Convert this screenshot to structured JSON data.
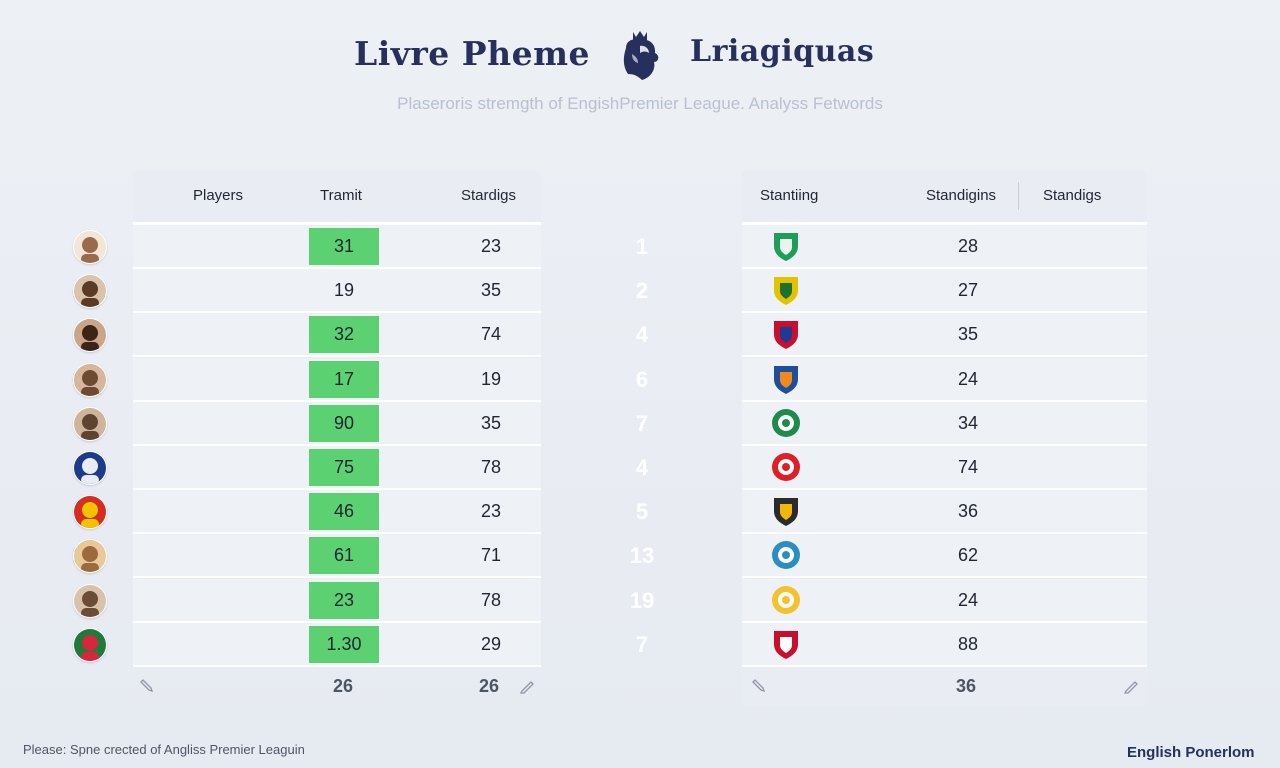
{
  "header": {
    "title_left": "Livre Pheme",
    "title_right": "Lriagiquas",
    "logo_icon": "lion-crown-icon",
    "subtitle": "Plaseroris stremgth of EngishPremier League. Analyss Fetwords"
  },
  "left_table": {
    "columns": [
      "Players",
      "Tramit",
      "Stardigs"
    ],
    "rows": [
      {
        "avatar": "player-avatar",
        "tramit": "31",
        "standings": "23",
        "highlight": true
      },
      {
        "avatar": "player-avatar",
        "tramit": "19",
        "standings": "35",
        "highlight": false
      },
      {
        "avatar": "player-avatar",
        "tramit": "32",
        "standings": "74",
        "highlight": true
      },
      {
        "avatar": "player-avatar",
        "tramit": "17",
        "standings": "19",
        "highlight": true
      },
      {
        "avatar": "player-avatar",
        "tramit": "90",
        "standings": "35",
        "highlight": true
      },
      {
        "avatar": "ball-icon",
        "tramit": "75",
        "standings": "78",
        "highlight": true
      },
      {
        "avatar": "club-badge-icon",
        "tramit": "46",
        "standings": "23",
        "highlight": true
      },
      {
        "avatar": "player-avatar",
        "tramit": "61",
        "standings": "71",
        "highlight": true
      },
      {
        "avatar": "player-avatar",
        "tramit": "23",
        "standings": "78",
        "highlight": true
      },
      {
        "avatar": "club-badge-icon",
        "tramit": "1.30",
        "standings": "29",
        "highlight": true
      }
    ],
    "footer": {
      "tramit_total": "26",
      "standings_total": "26"
    }
  },
  "ranks": [
    "1",
    "2",
    "4",
    "6",
    "7",
    "4",
    "5",
    "13",
    "19",
    "7"
  ],
  "right_table": {
    "columns": [
      "Stantiing",
      "Standigins",
      "Standigs"
    ],
    "rows": [
      {
        "crest": "shield-crest-icon",
        "value": "28"
      },
      {
        "crest": "shield-crest-icon",
        "value": "27"
      },
      {
        "crest": "shield-crest-icon",
        "value": "35"
      },
      {
        "crest": "shield-crest-icon",
        "value": "24"
      },
      {
        "crest": "round-crest-icon",
        "value": "34"
      },
      {
        "crest": "round-crest-icon",
        "value": "74"
      },
      {
        "crest": "shield-crest-icon",
        "value": "36"
      },
      {
        "crest": "round-crest-icon",
        "value": "62"
      },
      {
        "crest": "round-crest-icon",
        "value": "24"
      },
      {
        "crest": "shield-crest-icon",
        "value": "88"
      }
    ],
    "footer": {
      "total": "36"
    }
  },
  "footer": {
    "left_text": "Please: Spne crected of Angliss Premier Leaguin",
    "right_text": "English Ponerlom"
  },
  "colors": {
    "brand": "#27305d",
    "highlight": "#5cd172",
    "background": "#e9edf3"
  }
}
